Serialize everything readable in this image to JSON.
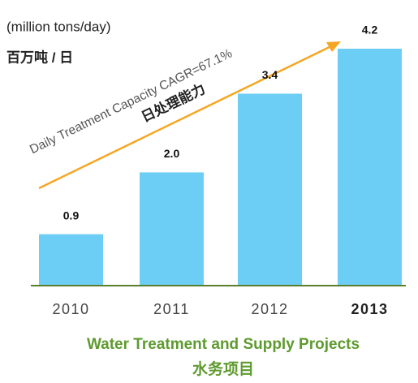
{
  "chart_data": {
    "type": "bar",
    "title": "Water Treatment and Supply Projects",
    "subtitle": "水务项目",
    "unit_label": "(million tons/day)",
    "unit_label_cn": "百万吨 / 日",
    "annotation": "Daily Treatment Capacity CAGR=67.1%",
    "annotation_cn": "日处理能力",
    "categories": [
      "2010",
      "2011",
      "2012",
      "2013"
    ],
    "values": [
      0.9,
      2.0,
      3.4,
      4.2
    ],
    "value_labels": [
      "0.9",
      "2.0",
      "3.4",
      "4.2"
    ],
    "color": "#6dcef5"
  }
}
